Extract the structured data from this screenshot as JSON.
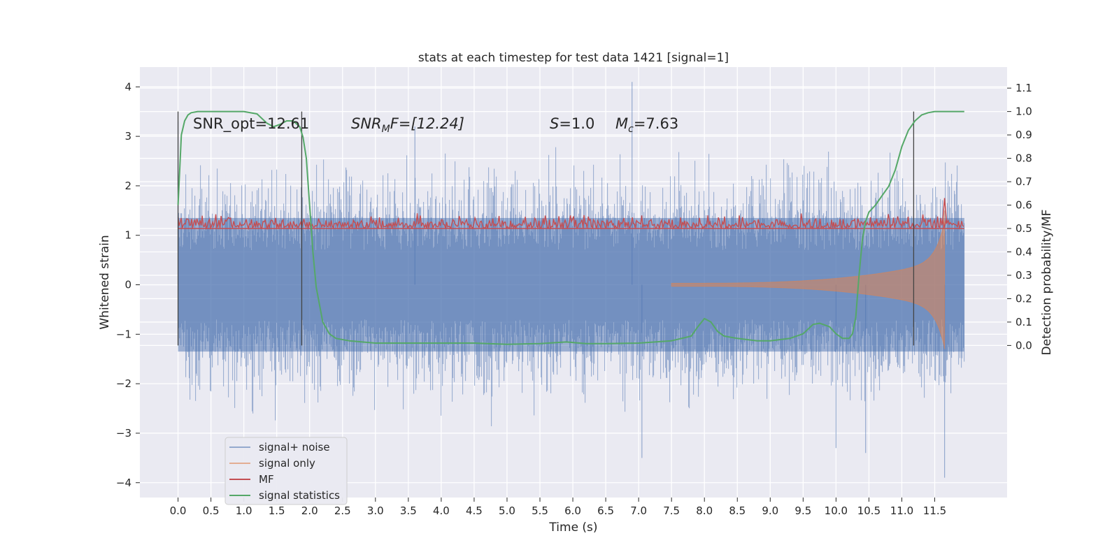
{
  "chart_data": {
    "type": "line",
    "title": "stats at each timestep for test data 1421 [signal=1]",
    "xlabel": "Time (s)",
    "ylabel": "Whitened strain",
    "ylabel_right": "Detection probability/MF",
    "xlim": [
      -0.58,
      12.6
    ],
    "ylim": [
      -4.3,
      4.4
    ],
    "ylim_right": [
      -0.65,
      1.19
    ],
    "x_ticks": [
      "0.0",
      "0.5",
      "1.0",
      "1.5",
      "2.0",
      "2.5",
      "3.0",
      "3.5",
      "4.0",
      "4.5",
      "5.0",
      "5.5",
      "6.0",
      "6.5",
      "7.0",
      "7.5",
      "8.0",
      "8.5",
      "9.0",
      "9.5",
      "10.0",
      "10.5",
      "11.0",
      "11.5"
    ],
    "y_ticks": [
      "−4",
      "−3",
      "−2",
      "−1",
      "0",
      "1",
      "2",
      "3",
      "4"
    ],
    "y_ticks_right": [
      "0.0",
      "0.1",
      "0.2",
      "0.3",
      "0.4",
      "0.5",
      "0.6",
      "0.7",
      "0.8",
      "0.9",
      "1.0",
      "1.1"
    ],
    "grid": true,
    "legend_position": "lower-left",
    "annotations": {
      "snr_opt": "SNR_opt=12.61",
      "snr_mf_base": "SNR",
      "snr_mf_sub": "M",
      "snr_mf_tail": "F=[12.24]",
      "s_sym": "S",
      "s_tail": "=1.0",
      "mc_sym": "M",
      "mc_sub": "c",
      "mc_tail": "=7.63"
    },
    "vlines": [
      0.0,
      1.88,
      11.18
    ],
    "series": [
      {
        "name": "signal+ noise",
        "color": "#4c72b0",
        "axis": "left",
        "envelope": {
          "x_range": [
            0.0,
            11.95
          ],
          "typical_amplitude": 1.35,
          "max": 4.1,
          "min": -3.9
        }
      },
      {
        "name": "signal only",
        "color": "#dd8452",
        "axis": "left",
        "chirp": {
          "start": 7.5,
          "merger": 11.65,
          "peak_amplitude": 1.5
        }
      },
      {
        "name": "MF",
        "color": "#c44e52",
        "axis": "right",
        "baseline": 0.5,
        "noise_amplitude": 0.04,
        "peak": {
          "x": 11.65,
          "y": 0.63
        }
      },
      {
        "name": "signal statistics",
        "color": "#55a868",
        "axis": "right",
        "x": [
          0.0,
          0.05,
          0.1,
          0.15,
          0.2,
          0.3,
          0.5,
          0.8,
          1.0,
          1.2,
          1.35,
          1.45,
          1.55,
          1.65,
          1.75,
          1.85,
          1.9,
          1.95,
          2.0,
          2.05,
          2.1,
          2.2,
          2.3,
          2.4,
          2.6,
          3.0,
          3.5,
          4.0,
          4.5,
          5.0,
          5.5,
          5.9,
          6.2,
          6.5,
          7.0,
          7.5,
          7.8,
          7.9,
          8.0,
          8.1,
          8.2,
          8.3,
          8.5,
          8.8,
          9.0,
          9.3,
          9.5,
          9.65,
          9.75,
          9.9,
          10.0,
          10.1,
          10.2,
          10.25,
          10.3,
          10.35,
          10.4,
          10.45,
          10.5,
          10.6,
          10.7,
          10.8,
          10.9,
          11.0,
          11.1,
          11.2,
          11.3,
          11.4,
          11.5,
          11.6,
          11.7,
          11.8,
          11.9,
          11.95
        ],
        "values": [
          0.6,
          0.9,
          0.96,
          0.985,
          0.995,
          1.0,
          1.0,
          1.0,
          1.0,
          0.99,
          0.95,
          0.935,
          0.945,
          0.96,
          0.96,
          0.935,
          0.89,
          0.8,
          0.6,
          0.4,
          0.25,
          0.1,
          0.05,
          0.03,
          0.02,
          0.01,
          0.01,
          0.01,
          0.01,
          0.005,
          0.008,
          0.015,
          0.008,
          0.008,
          0.01,
          0.02,
          0.04,
          0.08,
          0.115,
          0.1,
          0.06,
          0.04,
          0.03,
          0.02,
          0.02,
          0.03,
          0.05,
          0.09,
          0.095,
          0.08,
          0.05,
          0.03,
          0.03,
          0.05,
          0.12,
          0.3,
          0.45,
          0.53,
          0.57,
          0.6,
          0.64,
          0.68,
          0.75,
          0.85,
          0.92,
          0.96,
          0.985,
          0.995,
          1.0,
          1.0,
          1.0,
          1.0,
          1.0,
          1.0
        ]
      }
    ]
  }
}
